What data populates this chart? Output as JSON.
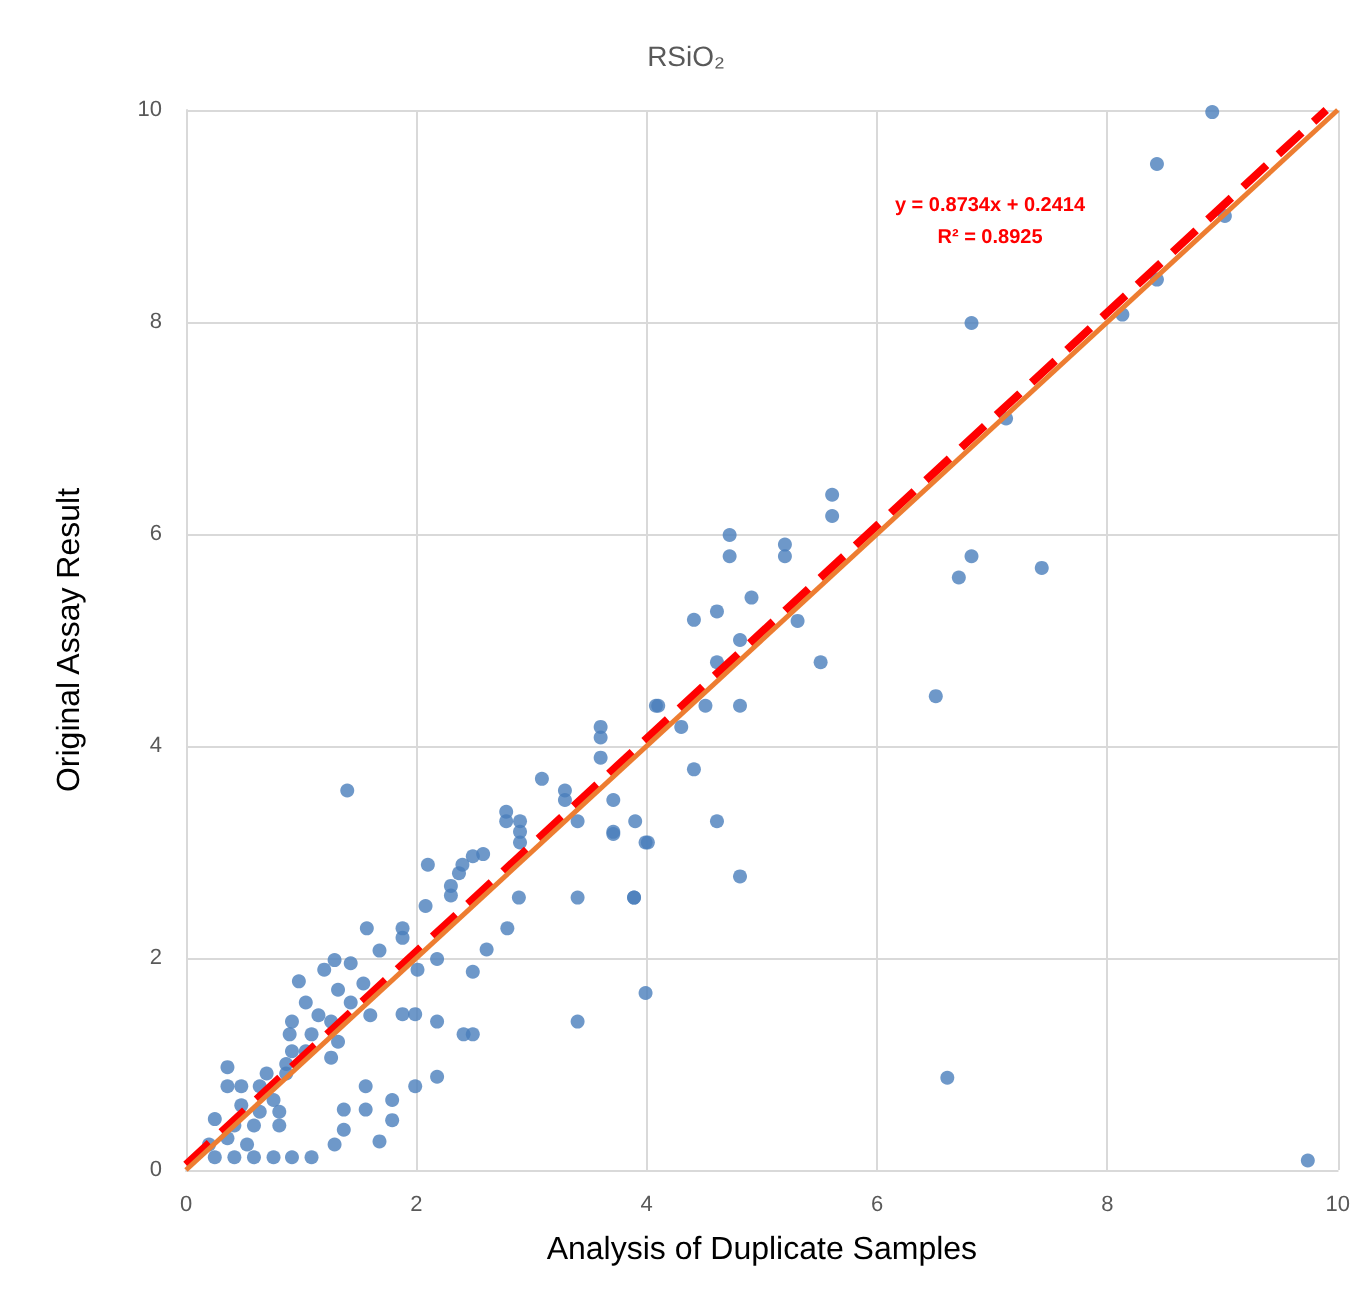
{
  "chart_data": {
    "type": "scatter",
    "title": "RSiO₂",
    "xlabel": "Analysis of Duplicate Samples",
    "ylabel": "Original Assay Result",
    "xlim": [
      0,
      10
    ],
    "xticks": [
      0,
      2,
      4,
      6,
      8,
      10
    ],
    "ylim": [
      0,
      10
    ],
    "yticks": [
      0,
      2,
      4,
      6,
      8,
      10
    ],
    "grid": true,
    "annotations": [
      "y = 0.8734x + 0.2414",
      "R² = 0.8925"
    ],
    "series": [
      {
        "color": "#4a7ebb",
        "marker": "circle",
        "x": [
          1.4,
          4.08,
          3.6,
          3.6,
          3.6,
          3.09,
          3.29,
          3.29,
          3.71,
          3.9,
          3.71,
          4.01,
          3.4,
          2.78,
          2.78,
          2.9,
          2.9,
          2.9,
          2.58,
          2.49,
          2.4,
          2.37,
          2.1,
          2.3,
          2.3,
          2.08,
          2.89,
          3.4,
          3.89,
          2.79,
          2.61,
          2.49,
          2.18,
          2.01,
          1.88,
          1.99,
          2.18,
          2.41,
          2.49,
          3.4,
          3.99,
          2.18,
          1.99,
          1.68,
          1.79,
          1.79,
          1.56,
          1.56,
          1.37,
          1.37,
          1.29,
          1.57,
          1.88,
          1.88,
          1.68,
          1.43,
          1.29,
          0.98,
          1.2,
          1.54,
          1.32,
          1.04,
          1.43,
          1.6,
          1.15,
          0.92,
          1.26,
          0.9,
          1.09,
          1.32,
          0.92,
          1.04,
          1.26,
          0.87,
          0.7,
          0.87,
          0.36,
          0.36,
          0.48,
          0.64,
          0.76,
          0.48,
          0.64,
          0.81,
          0.25,
          0.42,
          0.59,
          0.81,
          0.2,
          0.36,
          0.53,
          0.25,
          0.42,
          0.59,
          0.76,
          0.92,
          1.09,
          5.61,
          5.61,
          4.72,
          4.72,
          5.2,
          5.2,
          6.82,
          6.71,
          4.91,
          4.61,
          4.41,
          4.81,
          5.31,
          4.61,
          5.51,
          6.51,
          4.1,
          4.51,
          4.81,
          4.3,
          4.41,
          4.61,
          4.81,
          3.71,
          3.99,
          3.89,
          8.91,
          8.43,
          9.02,
          8.43,
          8.13,
          7.12,
          6.82,
          7.43,
          6.61,
          9.74
        ],
        "values": [
          3.58,
          4.38,
          4.18,
          4.08,
          3.89,
          3.69,
          3.58,
          3.49,
          3.49,
          3.29,
          3.19,
          3.09,
          3.29,
          3.38,
          3.29,
          3.29,
          3.19,
          3.09,
          2.98,
          2.96,
          2.88,
          2.8,
          2.88,
          2.68,
          2.59,
          2.49,
          2.57,
          2.57,
          2.57,
          2.28,
          2.08,
          1.87,
          1.99,
          1.89,
          1.47,
          1.47,
          1.4,
          1.28,
          1.28,
          1.4,
          1.67,
          0.88,
          0.79,
          0.27,
          0.66,
          0.47,
          0.79,
          0.57,
          0.57,
          0.38,
          0.24,
          2.28,
          2.28,
          2.19,
          2.07,
          1.95,
          1.98,
          1.78,
          1.89,
          1.76,
          1.7,
          1.58,
          1.58,
          1.46,
          1.46,
          1.4,
          1.4,
          1.28,
          1.28,
          1.21,
          1.12,
          1.12,
          1.06,
          1.0,
          0.91,
          0.91,
          0.97,
          0.79,
          0.79,
          0.79,
          0.66,
          0.61,
          0.55,
          0.55,
          0.48,
          0.42,
          0.42,
          0.42,
          0.24,
          0.3,
          0.24,
          0.12,
          0.12,
          0.12,
          0.12,
          0.12,
          0.12,
          6.37,
          6.17,
          5.99,
          5.79,
          5.9,
          5.79,
          5.79,
          5.59,
          5.4,
          5.27,
          5.19,
          5.0,
          5.18,
          4.79,
          4.79,
          4.47,
          4.38,
          4.38,
          4.38,
          4.18,
          3.78,
          3.29,
          2.77,
          3.17,
          3.09,
          2.57,
          9.98,
          9.49,
          9.0,
          8.4,
          8.07,
          7.09,
          7.99,
          5.68,
          0.87,
          0.09
        ]
      },
      {
        "type": "line",
        "color": "#ff0000",
        "line_style": "dashed",
        "marker": "none",
        "x": [
          0,
          9.9
        ],
        "values": [
          0.05,
          10
        ]
      },
      {
        "type": "line",
        "color": "#ed7d31",
        "line_style": "solid",
        "marker": "none",
        "x": [
          0,
          10
        ],
        "values": [
          0,
          10
        ]
      }
    ]
  }
}
